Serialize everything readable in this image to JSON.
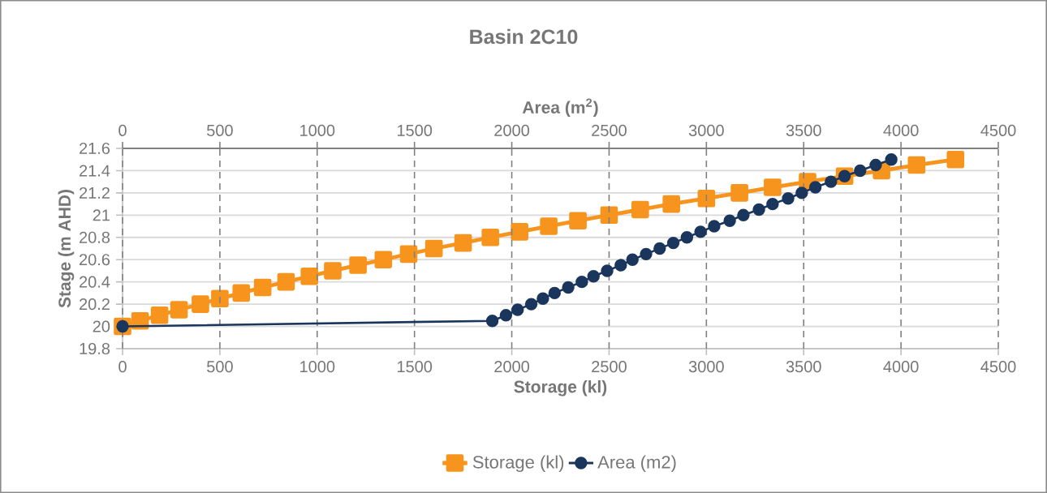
{
  "chart_data": {
    "type": "line",
    "title": "Basin 2C10",
    "xlabel": "Storage (kl)",
    "x2label": "Area (m$^{2}$)",
    "ylabel": "Stage (m AHD)",
    "xlim": [
      0,
      4500
    ],
    "xticks": [
      0,
      500,
      1000,
      1500,
      2000,
      2500,
      3000,
      3500,
      4000,
      4500
    ],
    "x2lim": [
      0,
      4500
    ],
    "x2ticks": [
      0,
      500,
      1000,
      1500,
      2000,
      2500,
      3000,
      3500,
      4000,
      4500
    ],
    "ylim": [
      19.8,
      21.6
    ],
    "yticks": [
      19.8,
      20,
      20.2,
      20.4,
      20.6,
      20.8,
      21,
      21.2,
      21.4,
      21.6
    ],
    "grid": true,
    "legend": "bottom",
    "series": [
      {
        "name": "Storage (kl)",
        "color": "#f7941d",
        "marker": "square",
        "x": [
          0,
          90,
          190,
          290,
          400,
          500,
          610,
          720,
          840,
          960,
          1080,
          1210,
          1340,
          1470,
          1600,
          1750,
          1890,
          2040,
          2190,
          2340,
          2500,
          2660,
          2820,
          3000,
          3170,
          3340,
          3520,
          3710,
          3900,
          4080,
          4280
        ],
        "values": [
          20,
          20.05,
          20.1,
          20.15,
          20.2,
          20.25,
          20.3,
          20.35,
          20.4,
          20.45,
          20.5,
          20.55,
          20.6,
          20.65,
          20.7,
          20.75,
          20.8,
          20.85,
          20.9,
          20.95,
          21,
          21.05,
          21.1,
          21.15,
          21.2,
          21.25,
          21.3,
          21.35,
          21.4,
          21.45,
          21.5
        ]
      },
      {
        "name": "Area (m2)",
        "color": "#1b365d",
        "marker": "circle",
        "axis": "x2",
        "x": [
          0,
          1900,
          1970,
          2030,
          2100,
          2160,
          2220,
          2290,
          2360,
          2420,
          2490,
          2560,
          2620,
          2690,
          2760,
          2830,
          2900,
          2970,
          3040,
          3120,
          3190,
          3270,
          3340,
          3420,
          3490,
          3560,
          3640,
          3710,
          3790,
          3870,
          3950
        ],
        "values": [
          20,
          20.05,
          20.1,
          20.15,
          20.2,
          20.25,
          20.3,
          20.35,
          20.4,
          20.45,
          20.5,
          20.55,
          20.6,
          20.65,
          20.7,
          20.75,
          20.8,
          20.85,
          20.9,
          20.95,
          21,
          21.05,
          21.1,
          21.15,
          21.2,
          21.25,
          21.3,
          21.35,
          21.4,
          21.45,
          21.5
        ]
      }
    ]
  }
}
